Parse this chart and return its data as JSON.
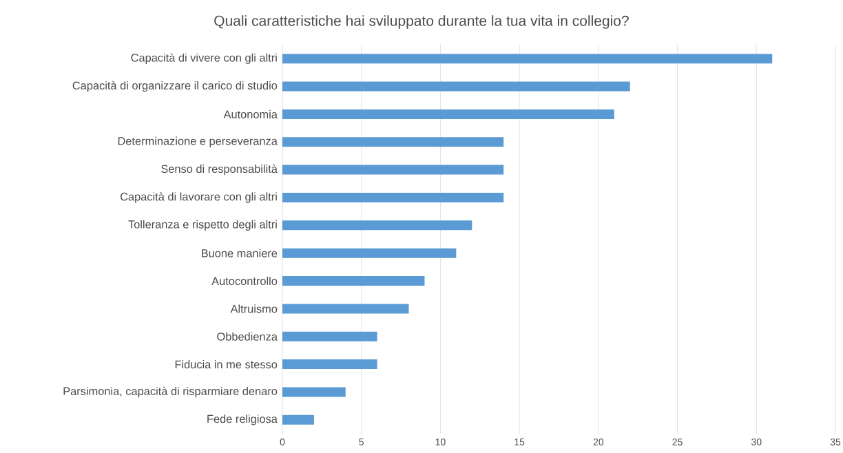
{
  "chart_data": {
    "type": "bar",
    "orientation": "horizontal",
    "title": "Quali caratteristiche hai sviluppato durante la tua vita in collegio?",
    "categories": [
      "Capacità di vivere con gli altri",
      "Capacità di organizzare il carico di studio",
      "Autonomia",
      "Determinazione e perseveranza",
      "Senso di responsabilità",
      "Capacità di lavorare con gli altri",
      "Tolleranza e rispetto degli altri",
      "Buone maniere",
      "Autocontrollo",
      "Altruismo",
      "Obbedienza",
      "Fiducia in me stesso",
      "Parsimonia, capacità di risparmiare denaro",
      "Fede religiosa"
    ],
    "values": [
      31,
      22,
      21,
      14,
      14,
      14,
      12,
      11,
      9,
      8,
      6,
      6,
      4,
      2
    ],
    "color": "#5b9bd5",
    "xlim": [
      0,
      35
    ],
    "xticks": [
      0,
      5,
      10,
      15,
      20,
      25,
      30,
      35
    ],
    "grid": "x"
  }
}
